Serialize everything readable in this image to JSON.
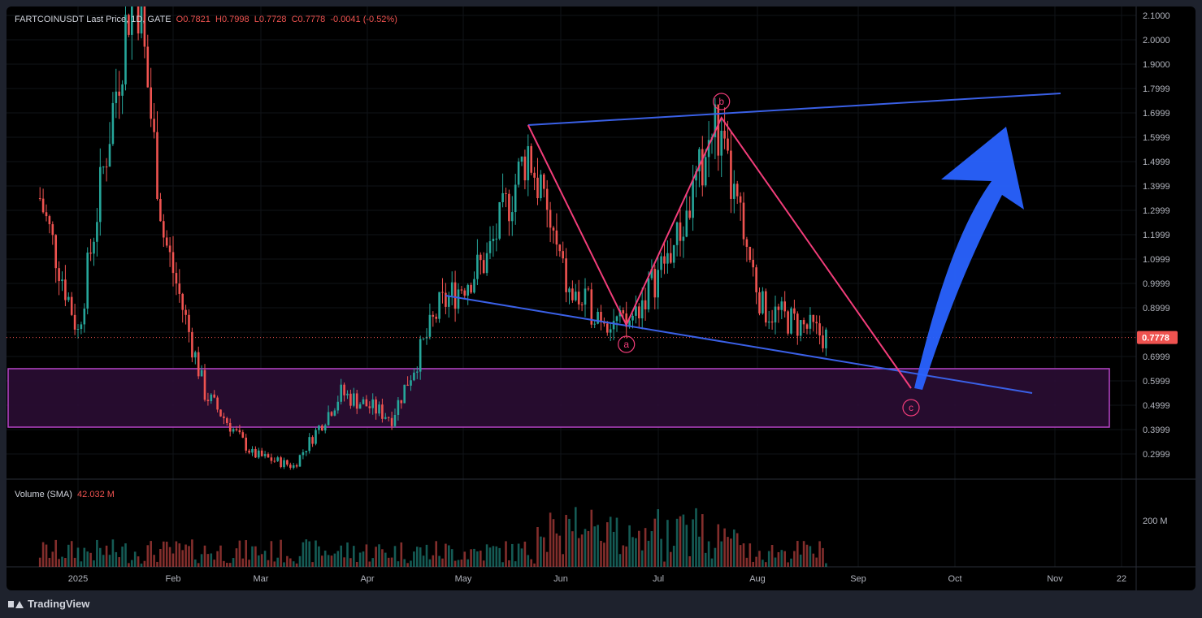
{
  "header": {
    "symbol": "FARTCOINUSDT Last Price, 1D, GATE",
    "open": "O0.7821",
    "high": "H0.7998",
    "low": "L0.7728",
    "close": "C0.7778",
    "change": "-0.0041 (-0.52%)"
  },
  "volume_legend": {
    "label": "Volume (SMA)",
    "value": "42.032 M"
  },
  "last_price_badge": "0.7778",
  "footer": {
    "brand": "TradingView"
  },
  "colors": {
    "up": "#26a69a",
    "down": "#ef5350",
    "pattern": "#f23d7a",
    "trendline": "#3a60e6",
    "arrow": "#2962ff",
    "zone_fill": "#2a0d33",
    "zone_border": "#b845c9"
  },
  "chart_data": {
    "type": "candlestick",
    "symbol": "FARTCOINUSDT",
    "price_axis_ticks": [
      "2.1000",
      "2.0000",
      "1.9000",
      "1.7999",
      "1.6999",
      "1.5999",
      "1.4999",
      "1.3999",
      "1.2999",
      "1.1999",
      "1.0999",
      "0.9999",
      "0.8999",
      "0.7999",
      "0.6999",
      "0.5999",
      "0.4999",
      "0.3999",
      "0.2999"
    ],
    "time_axis_ticks": [
      "2025",
      "Feb",
      "Mar",
      "Apr",
      "May",
      "Jun",
      "Jul",
      "Aug",
      "Sep",
      "Oct",
      "Nov",
      "22"
    ],
    "volume_axis_ticks": [
      "200 M"
    ],
    "pattern_labels": [
      "a",
      "b",
      "c"
    ],
    "approx_price_path": [
      {
        "date": "2024-12-20",
        "close": 1.35
      },
      {
        "date": "2025-01-01",
        "close": 0.8
      },
      {
        "date": "2025-01-10",
        "close": 1.55
      },
      {
        "date": "2025-01-19",
        "close": 2.3
      },
      {
        "date": "2025-01-28",
        "close": 1.2
      },
      {
        "date": "2025-02-10",
        "close": 0.55
      },
      {
        "date": "2025-02-25",
        "close": 0.3
      },
      {
        "date": "2025-03-10",
        "close": 0.25
      },
      {
        "date": "2025-03-25",
        "close": 0.55
      },
      {
        "date": "2025-04-10",
        "close": 0.45
      },
      {
        "date": "2025-04-25",
        "close": 0.9
      },
      {
        "date": "2025-05-10",
        "close": 1.1
      },
      {
        "date": "2025-05-23",
        "close": 1.55
      },
      {
        "date": "2025-06-05",
        "close": 0.95
      },
      {
        "date": "2025-06-23",
        "close": 0.82
      },
      {
        "date": "2025-07-10",
        "close": 1.2
      },
      {
        "date": "2025-07-21",
        "close": 1.65
      },
      {
        "date": "2025-08-05",
        "close": 0.9
      },
      {
        "date": "2025-08-25",
        "close": 0.78
      }
    ],
    "demand_zone": {
      "low": 0.41,
      "high": 0.65
    },
    "last_price": 0.7778
  }
}
